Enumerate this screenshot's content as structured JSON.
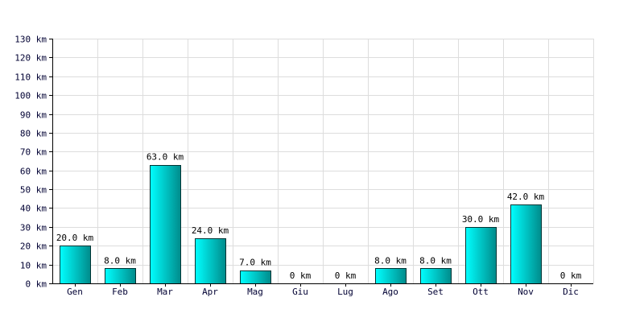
{
  "chart_data": {
    "type": "bar",
    "title": "",
    "xlabel": "",
    "ylabel": "",
    "unit": "km",
    "categories": [
      "Gen",
      "Feb",
      "Mar",
      "Apr",
      "Mag",
      "Giu",
      "Lug",
      "Ago",
      "Set",
      "Ott",
      "Nov",
      "Dic"
    ],
    "values": [
      20,
      8,
      63,
      24,
      7,
      0,
      0,
      8,
      8,
      30,
      42,
      0
    ],
    "data_labels": [
      "20.0 km",
      "8.0 km",
      "63.0 km",
      "24.0 km",
      "7.0 km",
      "0 km",
      "0 km",
      "8.0 km",
      "8.0 km",
      "30.0 km",
      "42.0 km",
      "0 km"
    ],
    "ylim": [
      0,
      130
    ],
    "yticks": [
      0,
      10,
      20,
      30,
      40,
      50,
      60,
      70,
      80,
      90,
      100,
      110,
      120,
      130
    ],
    "ytick_labels": [
      "0 km",
      "10 km",
      "20 km",
      "30 km",
      "40 km",
      "50 km",
      "60 km",
      "70 km",
      "80 km",
      "90 km",
      "100 km",
      "110 km",
      "120 km",
      "130 km"
    ],
    "grid": true,
    "legend": "none",
    "bar_color": "#00cccc",
    "bar_color_light": "#00ffff",
    "bar_color_dark": "#008b8b"
  }
}
